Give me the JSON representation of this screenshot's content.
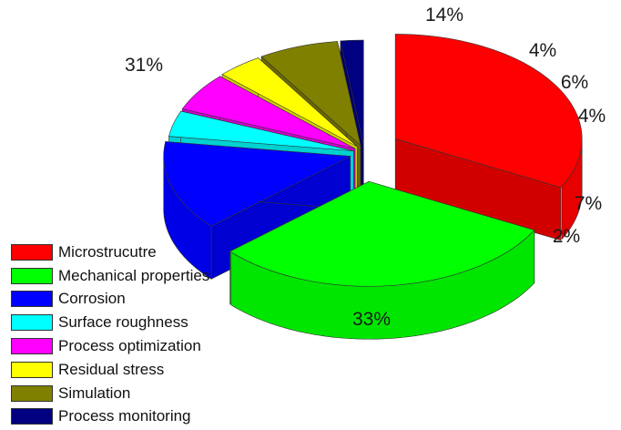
{
  "chart_data": {
    "type": "pie",
    "style": "3d-exploded",
    "legend_position": "bottom-left",
    "slices": [
      {
        "label": "Microstrucutre",
        "value": 33,
        "value_label": "33%",
        "color": "#ff0000"
      },
      {
        "label": "Mechanical properties",
        "value": 31,
        "value_label": "31%",
        "color": "#00ff00"
      },
      {
        "label": "Corrosion",
        "value": 14,
        "value_label": "14%",
        "color": "#0000ff"
      },
      {
        "label": "Surface roughness",
        "value": 4,
        "value_label": "4%",
        "color": "#00ffff"
      },
      {
        "label": "Process optimization",
        "value": 6,
        "value_label": "6%",
        "color": "#ff00ff"
      },
      {
        "label": "Residual stress",
        "value": 4,
        "value_label": "4%",
        "color": "#ffff00"
      },
      {
        "label": "Simulation",
        "value": 7,
        "value_label": "7%",
        "color": "#808000"
      },
      {
        "label": "Process monitoring",
        "value": 2,
        "value_label": "2%",
        "color": "#000080"
      }
    ]
  }
}
